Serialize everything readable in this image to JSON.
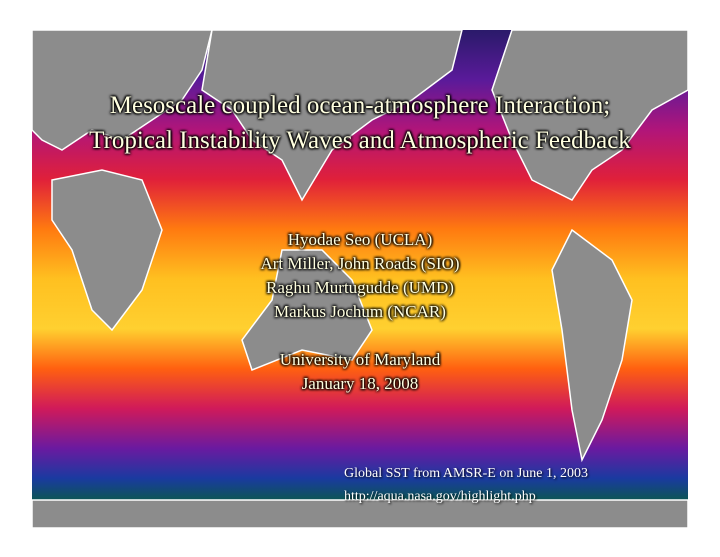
{
  "title": [
    "Mesoscale coupled ocean-atmosphere Interaction;",
    "Tropical Instability Waves and Atmospheric Feedback"
  ],
  "authors": [
    "Hyodae Seo (UCLA)",
    "Art Miller, John Roads (SIO)",
    "Raghu Murtugudde (UMD)",
    "Markus Jochum (NCAR)"
  ],
  "venue": [
    "University of Maryland",
    "January 18, 2008"
  ],
  "caption": [
    "Global SST from AMSR-E on June 1, 2003",
    "http://aqua.nasa.gov/highlight.php"
  ]
}
